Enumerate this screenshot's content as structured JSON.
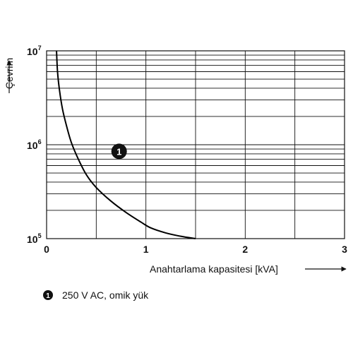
{
  "chart_data": {
    "type": "line",
    "xlabel": "Anahtarlama kapasitesi [kVA]",
    "ylabel": "Çevrim",
    "xlim": [
      0,
      3
    ],
    "ylim": [
      100000,
      10000000
    ],
    "yscale": "log",
    "grid": true,
    "x_ticks": [
      {
        "value": 0,
        "label": "0"
      },
      {
        "value": 1,
        "label": "1"
      },
      {
        "value": 2,
        "label": "2"
      },
      {
        "value": 3,
        "label": "3"
      }
    ],
    "y_ticks": [
      {
        "value": 100000,
        "base": "10",
        "exp": "5"
      },
      {
        "value": 1000000,
        "base": "10",
        "exp": "6"
      },
      {
        "value": 10000000,
        "base": "10",
        "exp": "7"
      }
    ],
    "series": [
      {
        "name": "250 V AC, omik yük",
        "marker": "1",
        "x": [
          0.1,
          0.11,
          0.13,
          0.16,
          0.2,
          0.25,
          0.32,
          0.4,
          0.5,
          0.65,
          0.8,
          0.95,
          1.05,
          1.2,
          1.35,
          1.5
        ],
        "y": [
          10000000,
          6000000,
          3800000,
          2400000,
          1600000,
          1050000,
          700000,
          480000,
          350000,
          250000,
          190000,
          150000,
          130000,
          115000,
          106000,
          100000
        ]
      }
    ],
    "legend": {
      "position": "bottom-left",
      "items": [
        {
          "marker": "1",
          "label": "250 V AC, omik yük"
        }
      ]
    },
    "annotations": [
      {
        "text": "1",
        "x": 0.73,
        "y": 850000
      }
    ]
  }
}
